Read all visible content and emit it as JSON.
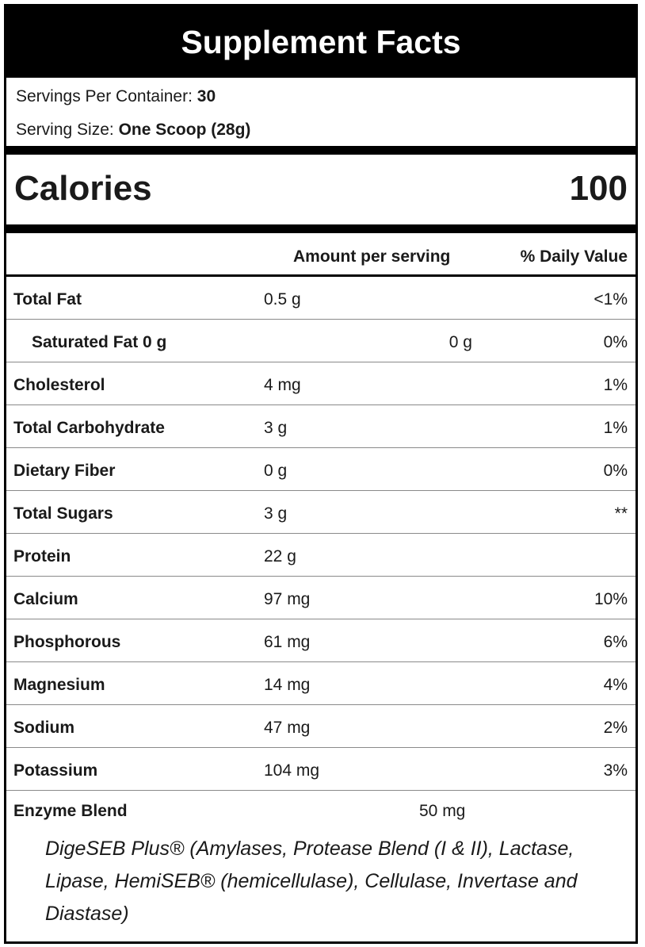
{
  "title": "Supplement Facts",
  "servings": {
    "per_container_label": "Servings Per Container: ",
    "per_container_value": "30",
    "size_label": "Serving Size: ",
    "size_value": "One Scoop (28g)"
  },
  "calories": {
    "label": "Calories",
    "value": "100"
  },
  "columns": {
    "amount": "Amount per serving",
    "daily_value": "% Daily Value"
  },
  "nutrients": [
    {
      "name": "Total Fat",
      "amount": "0.5 g",
      "dv": "<1%"
    },
    {
      "name": "Saturated Fat 0 g",
      "amount_alt": "0 g",
      "dv": "0%"
    },
    {
      "name": "Cholesterol",
      "amount": "4 mg",
      "dv": "1%"
    },
    {
      "name": "Total Carbohydrate",
      "amount": "3 g",
      "dv": "1%"
    },
    {
      "name": "Dietary Fiber",
      "amount": "0 g",
      "dv": "0%"
    },
    {
      "name": "Total Sugars",
      "amount": "3 g",
      "dv": "**"
    },
    {
      "name": "Protein",
      "amount": "22 g",
      "dv": ""
    },
    {
      "name": "Calcium",
      "amount": "97 mg",
      "dv": "10%"
    },
    {
      "name": "Phosphorous",
      "amount": "61 mg",
      "dv": "6%"
    },
    {
      "name": "Magnesium",
      "amount": "14 mg",
      "dv": "4%"
    },
    {
      "name": "Sodium",
      "amount": "47 mg",
      "dv": "2%"
    },
    {
      "name": "Potassium",
      "amount": "104 mg",
      "dv": "3%"
    }
  ],
  "enzyme": {
    "name": "Enzyme Blend",
    "amount": "50 mg",
    "description": "DigeSEB Plus® (Amylases, Protease Blend (I & II), Lactase, Lipase, HemiSEB® (hemicellulase), Cellulase, Invertase and Diastase)"
  }
}
